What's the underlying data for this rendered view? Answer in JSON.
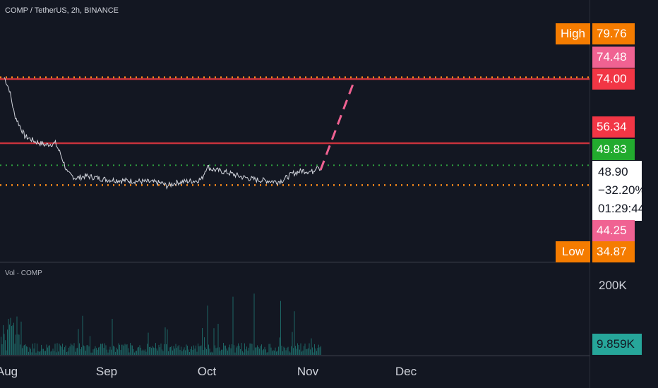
{
  "header": {
    "title": "COMP / TetherUS, 2h, BINANCE"
  },
  "volume_header": {
    "title": "Vol · COMP"
  },
  "price_axis": {
    "high_label": "High",
    "high_value": "79.76",
    "level_1": "74.48",
    "level_2": "74.00",
    "level_3": "56.34",
    "level_4": "49.83",
    "last_price": "48.90",
    "change_pct": "−32.20%",
    "countdown": "01:29:44",
    "level_5": "44.25",
    "low_label": "Low",
    "low_value": "34.87"
  },
  "volume_axis": {
    "tick_200k": "200K",
    "current_volume": "9.859K"
  },
  "time_axis": [
    "Aug",
    "Sep",
    "Oct",
    "Nov",
    "Dec"
  ],
  "colors": {
    "background": "#131722",
    "candle_line": "#d1d4dc",
    "resistance_red": "#c8323c",
    "dotted_orange": "#ff8c1a",
    "dotted_green": "#2e9e3e",
    "projection_pink": "#f06292",
    "volume_bars": "#26a69a",
    "high_low_badge": "#f57c00",
    "pink_badge": "#f06292",
    "red_badge": "#f23645",
    "green_badge": "#22ab2e",
    "volume_badge": "#26a69a"
  },
  "chart_data": {
    "type": "line",
    "title": "COMP / TetherUS, 2h, BINANCE",
    "x_categories": [
      "Aug",
      "Sep",
      "Oct",
      "Nov",
      "Dec"
    ],
    "series": [
      {
        "values": [
          [
            0.0,
            74.5
          ],
          [
            0.05,
            71.0
          ],
          [
            0.1,
            64.0
          ],
          [
            0.2,
            58.0
          ],
          [
            0.3,
            56.5
          ],
          [
            0.4,
            55.5
          ],
          [
            0.5,
            56.0
          ],
          [
            0.55,
            53.0
          ],
          [
            0.62,
            47.5
          ],
          [
            0.7,
            46.2
          ],
          [
            0.8,
            46.8
          ],
          [
            1.0,
            45.8
          ],
          [
            1.2,
            45.5
          ],
          [
            1.4,
            45.2
          ],
          [
            1.55,
            44.8
          ],
          [
            1.6,
            44.0
          ],
          [
            1.7,
            45.0
          ],
          [
            1.8,
            45.3
          ],
          [
            1.9,
            45.5
          ],
          [
            1.95,
            46.0
          ],
          [
            2.0,
            49.5
          ],
          [
            2.05,
            48.7
          ],
          [
            2.2,
            47.8
          ],
          [
            2.35,
            46.5
          ],
          [
            2.5,
            45.7
          ],
          [
            2.6,
            45.5
          ],
          [
            2.7,
            45.2
          ],
          [
            2.75,
            45.6
          ],
          [
            2.85,
            47.5
          ],
          [
            2.95,
            48.3
          ],
          [
            3.05,
            48.0
          ],
          [
            3.1,
            50.0
          ],
          [
            3.13,
            48.5
          ]
        ]
      },
      {
        "name": "projection",
        "values": [
          [
            3.13,
            48.5
          ],
          [
            3.48,
            74.0
          ]
        ]
      }
    ],
    "levels": {
      "resistance_solid": [
        74.0,
        56.0
      ],
      "dotted_orange": [
        74.48,
        44.25
      ],
      "dotted_green": [
        49.83
      ]
    },
    "volume": {
      "current": 9859,
      "axis_ticks": [
        "200K"
      ]
    }
  }
}
